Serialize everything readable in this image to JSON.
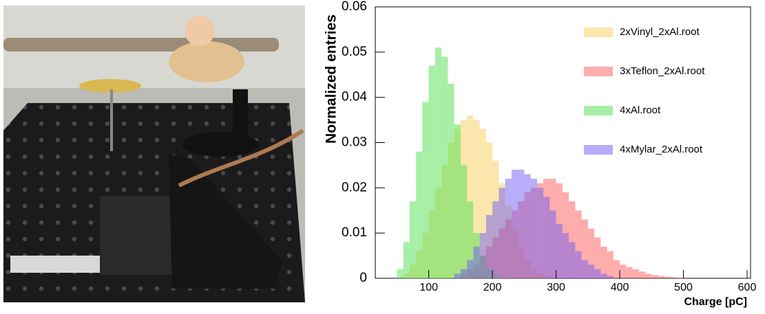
{
  "chart_data": {
    "type": "histogram",
    "xlabel": "Charge [pC]",
    "ylabel": "Normalized entries",
    "xlim": [
      16,
      600
    ],
    "ylim": [
      0,
      0.06
    ],
    "xticks": [
      100,
      200,
      300,
      400,
      500,
      600
    ],
    "yticks": [
      0,
      0.01,
      0.02,
      0.03,
      0.04,
      0.05,
      0.06
    ],
    "grid": false,
    "legend": "upper right",
    "bins": [
      40,
      50,
      60,
      70,
      80,
      90,
      100,
      110,
      120,
      130,
      140,
      150,
      160,
      170,
      180,
      190,
      200,
      210,
      220,
      230,
      240,
      250,
      260,
      270,
      280,
      290,
      300,
      310,
      320,
      330,
      340,
      350,
      360,
      370,
      380,
      390,
      400,
      410,
      420,
      430,
      440,
      450,
      460,
      470,
      480,
      490,
      500,
      510,
      520
    ],
    "series": [
      {
        "name": "2xVinyl_2xAl.root",
        "color": "#f7cf5a",
        "values": [
          0,
          0,
          0.001,
          0.003,
          0.006,
          0.01,
          0.015,
          0.02,
          0.025,
          0.03,
          0.033,
          0.035,
          0.036,
          0.035,
          0.033,
          0.03,
          0.026,
          0.021,
          0.016,
          0.011,
          0.007,
          0.004,
          0.002,
          0.001,
          0.0005,
          0,
          0,
          0,
          0,
          0,
          0,
          0,
          0,
          0,
          0,
          0,
          0,
          0,
          0,
          0,
          0,
          0,
          0,
          0,
          0,
          0,
          0,
          0
        ]
      },
      {
        "name": "3xTeflon_2xAl.root",
        "color": "#ff5a5a",
        "values": [
          0,
          0,
          0,
          0,
          0,
          0,
          0,
          0,
          0,
          0,
          0,
          0.001,
          0.002,
          0.003,
          0.005,
          0.007,
          0.009,
          0.011,
          0.013,
          0.015,
          0.017,
          0.019,
          0.02,
          0.021,
          0.022,
          0.022,
          0.021,
          0.019,
          0.017,
          0.015,
          0.013,
          0.011,
          0.009,
          0.007,
          0.006,
          0.004,
          0.003,
          0.0025,
          0.002,
          0.0015,
          0.001,
          0.0007,
          0.0005,
          0.0003,
          0.0002,
          0.0001,
          0,
          0
        ]
      },
      {
        "name": "4xAl.root",
        "color": "#4fe04f",
        "values": [
          0,
          0.002,
          0.008,
          0.017,
          0.028,
          0.039,
          0.047,
          0.051,
          0.049,
          0.043,
          0.034,
          0.025,
          0.017,
          0.01,
          0.005,
          0.002,
          0.001,
          0,
          0,
          0,
          0,
          0,
          0,
          0,
          0,
          0,
          0,
          0,
          0,
          0,
          0,
          0,
          0,
          0,
          0,
          0,
          0,
          0,
          0,
          0,
          0,
          0,
          0,
          0,
          0,
          0,
          0,
          0
        ]
      },
      {
        "name": "4xMylar_2xAl.root",
        "color": "#6f5cf2",
        "values": [
          0,
          0,
          0,
          0,
          0,
          0,
          0,
          0,
          0,
          0,
          0.001,
          0.002,
          0.004,
          0.007,
          0.01,
          0.014,
          0.017,
          0.02,
          0.022,
          0.024,
          0.024,
          0.023,
          0.022,
          0.02,
          0.018,
          0.015,
          0.012,
          0.01,
          0.008,
          0.006,
          0.004,
          0.003,
          0.002,
          0.001,
          0.0005,
          0,
          0,
          0,
          0,
          0,
          0,
          0,
          0,
          0,
          0,
          0,
          0,
          0
        ]
      }
    ]
  }
}
